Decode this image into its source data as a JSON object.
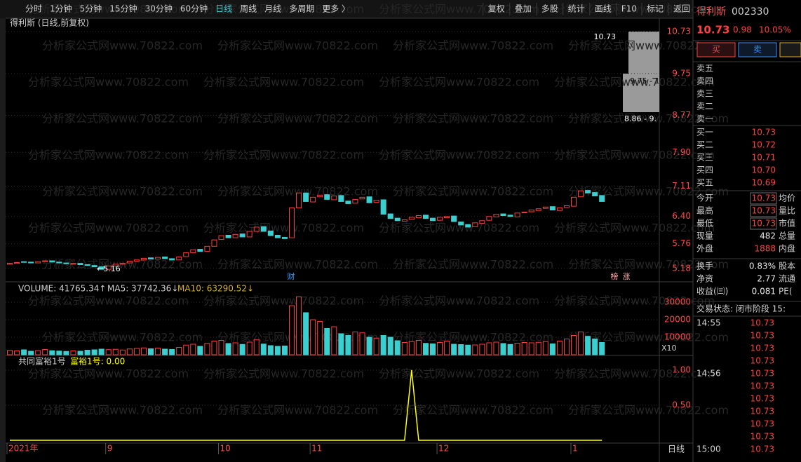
{
  "toolbar": {
    "periods": [
      "分时",
      "1分钟",
      "5分钟",
      "15分钟",
      "30分钟",
      "60分钟",
      "日线",
      "周线",
      "月线",
      "多周期",
      "更多 〉"
    ],
    "actions": [
      "复权",
      "叠加",
      "多股",
      "统计",
      "画线",
      "F10",
      "标记",
      "返回"
    ]
  },
  "watermark": "分析家公式网www.70822.com",
  "period_label": "日线",
  "chart_data": [
    {
      "type": "candlestick",
      "title": "得利斯 (日线,前复权)",
      "categories": [
        "2021年",
        null,
        null,
        null,
        null,
        null,
        null,
        null,
        null,
        null,
        null,
        null,
        null,
        null,
        "9",
        null,
        null,
        null,
        null,
        null,
        null,
        null,
        null,
        null,
        null,
        null,
        null,
        null,
        null,
        null,
        "10",
        null,
        null,
        null,
        null,
        null,
        null,
        null,
        null,
        null,
        null,
        null,
        null,
        "11",
        null,
        null,
        null,
        null,
        null,
        null,
        null,
        null,
        null,
        null,
        null,
        null,
        null,
        null,
        null,
        null,
        null,
        "12",
        null,
        null,
        null,
        null,
        null,
        null,
        null,
        null,
        null,
        null,
        null,
        null,
        null,
        null,
        null,
        null,
        null,
        null,
        "1",
        null,
        null,
        null,
        null
      ],
      "open": [
        5.28,
        5.3,
        5.34,
        5.33,
        5.31,
        5.34,
        5.36,
        5.33,
        5.31,
        5.28,
        5.3,
        5.27,
        5.25,
        5.22,
        5.16,
        5.24,
        5.28,
        5.31,
        5.35,
        5.38,
        5.43,
        5.4,
        5.45,
        5.41,
        5.38,
        5.46,
        5.55,
        5.63,
        5.58,
        5.7,
        5.86,
        5.96,
        5.9,
        5.99,
        5.92,
        6.05,
        6.16,
        6.06,
        5.96,
        5.91,
        5.9,
        6.6,
        6.95,
        6.74,
        6.86,
        6.91,
        6.79,
        6.89,
        6.76,
        6.71,
        6.81,
        6.86,
        6.73,
        6.79,
        6.46,
        6.36,
        6.29,
        6.33,
        6.37,
        6.43,
        6.36,
        6.31,
        6.37,
        6.41,
        6.27,
        6.21,
        6.16,
        6.24,
        6.31,
        6.39,
        6.46,
        6.43,
        6.39,
        6.49,
        6.51,
        6.54,
        6.59,
        6.63,
        6.54,
        6.61,
        6.64,
        6.86,
        7.01,
        6.96,
        6.89
      ],
      "close": [
        5.3,
        5.32,
        5.33,
        5.31,
        5.34,
        5.36,
        5.33,
        5.31,
        5.29,
        5.3,
        5.27,
        5.25,
        5.22,
        5.16,
        5.24,
        5.28,
        5.3,
        5.35,
        5.38,
        5.42,
        5.4,
        5.44,
        5.41,
        5.38,
        5.45,
        5.55,
        5.62,
        5.58,
        5.7,
        5.85,
        5.95,
        5.9,
        5.98,
        5.92,
        6.05,
        6.15,
        6.05,
        5.95,
        5.9,
        5.88,
        6.6,
        6.95,
        6.75,
        6.85,
        6.9,
        6.8,
        6.88,
        6.75,
        6.7,
        6.8,
        6.85,
        6.72,
        6.78,
        6.45,
        6.35,
        6.3,
        6.32,
        6.38,
        6.42,
        6.35,
        6.3,
        6.38,
        6.4,
        6.28,
        6.2,
        6.15,
        6.25,
        6.3,
        6.4,
        6.45,
        6.42,
        6.4,
        6.48,
        6.5,
        6.55,
        6.58,
        6.62,
        6.55,
        6.6,
        6.65,
        6.85,
        7.0,
        6.95,
        6.88,
        6.75
      ],
      "up_color": "#ff3c3c",
      "down_color": "#3ccfcf",
      "ylim": [
        4.9,
        10.98
      ],
      "yticks": [
        {
          "value": 5.18,
          "label": "5.18"
        },
        {
          "value": 5.76,
          "label": "5.76"
        },
        {
          "value": 6.4,
          "label": "6.40"
        },
        {
          "value": 7.11,
          "label": "7.11"
        },
        {
          "value": 7.9,
          "label": "7.90"
        },
        {
          "value": 8.77,
          "label": "8.77"
        },
        {
          "value": 9.75,
          "label": "9.75"
        },
        {
          "value": 10.73,
          "label": "10.73"
        }
      ],
      "grid": true,
      "annotations": [
        "←5.16",
        "10.73",
        "财",
        "榜",
        "涨",
        "9.75 - 1",
        "8.86 - 9."
      ]
    },
    {
      "type": "bar",
      "title": "VOLUME: 41765.34↑",
      "legend": [
        "MA5: 37742.36↓",
        "MA10: 63290.52↓"
      ],
      "scale_label": "X10",
      "values": [
        2500,
        2200,
        2800,
        2000,
        2400,
        3000,
        2300,
        2100,
        1900,
        2200,
        2000,
        2600,
        2800,
        3200,
        2900,
        3100,
        2700,
        3300,
        3600,
        3900,
        3400,
        3800,
        3200,
        3000,
        4200,
        5500,
        6000,
        4800,
        6500,
        7800,
        8200,
        6400,
        6800,
        5900,
        7200,
        8500,
        6100,
        5200,
        4800,
        5000,
        28000,
        33000,
        24000,
        20000,
        19000,
        15000,
        16000,
        12000,
        11000,
        13000,
        12500,
        10000,
        9500,
        11000,
        10000,
        8000,
        7000,
        7500,
        8200,
        6500,
        6200,
        7000,
        7800,
        6000,
        5800,
        5500,
        5600,
        6000,
        6800,
        7200,
        6400,
        5900,
        6600,
        7000,
        6800,
        7100,
        7500,
        6200,
        7800,
        9000,
        11000,
        13000,
        10500,
        9000,
        7000
      ],
      "ylim": [
        0,
        40000
      ],
      "yticks": [
        10000,
        20000,
        30000
      ],
      "grid": true
    },
    {
      "type": "line",
      "title": "共同富裕1号",
      "series": [
        {
          "name": "富裕1号: 0.00",
          "color": "#ffff00",
          "values": [
            0,
            0,
            0,
            0,
            0,
            0,
            0,
            0,
            0,
            0,
            0,
            0,
            0,
            0,
            0,
            0,
            0,
            0,
            0,
            0,
            0,
            0,
            0,
            0,
            0,
            0,
            0,
            0,
            0,
            0,
            0,
            0,
            0,
            0,
            0,
            0,
            0,
            0,
            0,
            0,
            0,
            0,
            0,
            0,
            0,
            0,
            0,
            0,
            0,
            0,
            0,
            0,
            0,
            0,
            0,
            0,
            0,
            1,
            0,
            0,
            0,
            0,
            0,
            0,
            0,
            0,
            0,
            0,
            0,
            0,
            0,
            0,
            0,
            0,
            0,
            0,
            0,
            0,
            0,
            0,
            0,
            0,
            0,
            0,
            0
          ]
        }
      ],
      "ylim": [
        0,
        1.18
      ],
      "yticks": [
        {
          "value": 0.5,
          "label": "0.50"
        },
        {
          "value": 1,
          "label": "1.00"
        }
      ],
      "grid": true
    }
  ],
  "quote": {
    "name": "得利斯",
    "code": "002330",
    "price": "10.73",
    "change": "0.98",
    "pct": "10.05%",
    "buy": "买",
    "sell": "卖",
    "asks": [
      "卖五",
      "卖四",
      "卖三",
      "卖二",
      "卖一"
    ],
    "bids": [
      {
        "label": "买一",
        "price": "10.73"
      },
      {
        "label": "买二",
        "price": "10.72"
      },
      {
        "label": "买三",
        "price": "10.71"
      },
      {
        "label": "买四",
        "price": "10.70"
      },
      {
        "label": "买五",
        "price": "10.69"
      }
    ],
    "stats": [
      [
        "今开",
        "10.73",
        "均价"
      ],
      [
        "最高",
        "10.73",
        "量比"
      ],
      [
        "最低",
        "10.73",
        "市值"
      ],
      [
        "现量",
        "482",
        "总量"
      ],
      [
        "外盘",
        "1888",
        "内盘"
      ],
      [
        "换手",
        "0.83%",
        "股本"
      ],
      [
        "净资",
        "2.77",
        "流通"
      ],
      [
        "收益(㈢)",
        "0.081",
        "PE("
      ]
    ],
    "status": "交易状态: 闭市阶段 15:",
    "trades": [
      {
        "time": "14:55",
        "price": "10.73"
      },
      {
        "time": null,
        "price": "10.73"
      },
      {
        "time": null,
        "price": "10.73"
      },
      {
        "time": null,
        "price": "10.73"
      },
      {
        "time": "14:56",
        "price": "10.73"
      },
      {
        "time": null,
        "price": "10.73"
      },
      {
        "time": null,
        "price": "10.73"
      },
      {
        "time": null,
        "price": "10.73"
      },
      {
        "time": null,
        "price": "10.73"
      },
      {
        "time": null,
        "price": "10.73"
      },
      {
        "time": "15:00",
        "price": "10.73"
      }
    ]
  }
}
